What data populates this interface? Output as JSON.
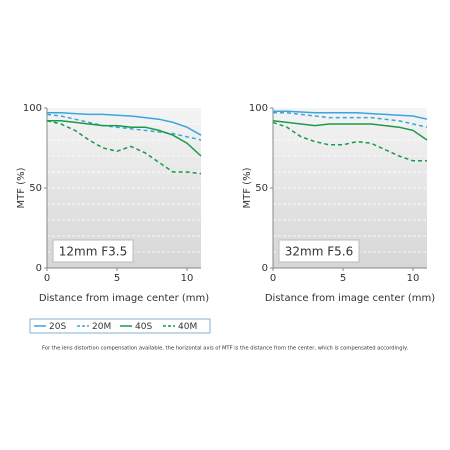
{
  "chart_data": [
    {
      "type": "line",
      "annotation": "12mm F3.5",
      "ylabel": "MTF (%)",
      "xlabel": "Distance from image center (mm)",
      "x": [
        0,
        1,
        2,
        3,
        4,
        5,
        6,
        7,
        8,
        9,
        10,
        11
      ],
      "xlim": [
        0,
        11
      ],
      "xticks": [
        0,
        5,
        10
      ],
      "ylim": [
        0,
        100
      ],
      "yticks": [
        0,
        50,
        100
      ],
      "grid_yticks": [
        10,
        20,
        30,
        40,
        50,
        60,
        70,
        80,
        90
      ],
      "series": [
        {
          "name": "20S",
          "color": "#3aa6dd",
          "style": "solid",
          "values": [
            97,
            97,
            96.5,
            96,
            96,
            95.5,
            95,
            94,
            93,
            91,
            88,
            83
          ]
        },
        {
          "name": "20M",
          "color": "#3aa6dd",
          "style": "dashed",
          "values": [
            96,
            95,
            93,
            91,
            89,
            88,
            87,
            86,
            85,
            84,
            82,
            80
          ]
        },
        {
          "name": "40S",
          "color": "#1a9a4a",
          "style": "solid",
          "values": [
            92,
            92,
            91,
            90,
            89,
            89,
            88,
            88,
            86,
            83,
            78,
            70
          ]
        },
        {
          "name": "40M",
          "color": "#1a9a4a",
          "style": "dashed",
          "values": [
            92,
            90,
            86,
            80,
            75,
            73,
            76,
            72,
            66,
            60,
            60,
            59
          ]
        }
      ]
    },
    {
      "type": "line",
      "annotation": "32mm F5.6",
      "ylabel": "MTF (%)",
      "xlabel": "Distance from image center (mm)",
      "x": [
        0,
        1,
        2,
        3,
        4,
        5,
        6,
        7,
        8,
        9,
        10,
        11
      ],
      "xlim": [
        0,
        11
      ],
      "xticks": [
        0,
        5,
        10
      ],
      "ylim": [
        0,
        100
      ],
      "yticks": [
        0,
        50,
        100
      ],
      "grid_yticks": [
        10,
        20,
        30,
        40,
        50,
        60,
        70,
        80,
        90
      ],
      "series": [
        {
          "name": "20S",
          "color": "#3aa6dd",
          "style": "solid",
          "values": [
            98,
            98,
            97.5,
            97,
            97,
            97,
            97,
            96.5,
            96,
            95.5,
            95,
            93
          ]
        },
        {
          "name": "20M",
          "color": "#3aa6dd",
          "style": "dashed",
          "values": [
            97,
            97,
            96,
            95,
            94,
            94,
            94,
            94,
            93,
            92,
            90,
            88
          ]
        },
        {
          "name": "40S",
          "color": "#1a9a4a",
          "style": "solid",
          "values": [
            92,
            91,
            90,
            89,
            90,
            90,
            90,
            90,
            89,
            88,
            86,
            80
          ]
        },
        {
          "name": "40M",
          "color": "#1a9a4a",
          "style": "dashed",
          "values": [
            91,
            88,
            82,
            79,
            77,
            77,
            79,
            78,
            74,
            70,
            67,
            67
          ]
        }
      ]
    }
  ],
  "footnote": "For the lens distortion compensation available, the horizontal axis of MTF is the distance from the center, which is compensated accordingly."
}
